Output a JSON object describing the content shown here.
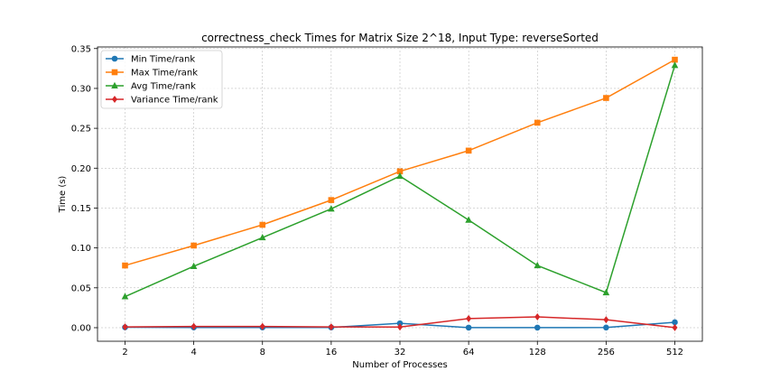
{
  "chart_data": {
    "type": "line",
    "title": "correctness_check Times for Matrix Size 2^18, Input Type: reverseSorted",
    "xlabel": "Number of Processes",
    "ylabel": "Time (s)",
    "categories": [
      "2",
      "4",
      "8",
      "16",
      "32",
      "64",
      "128",
      "256",
      "512"
    ],
    "ylim": [
      -0.017,
      0.352
    ],
    "yticks": [
      "0.00",
      "0.05",
      "0.10",
      "0.15",
      "0.20",
      "0.25",
      "0.30",
      "0.35"
    ],
    "ytick_values": [
      0,
      0.05,
      0.1,
      0.15,
      0.2,
      0.25,
      0.3,
      0.35
    ],
    "grid": true,
    "legend_position": "top-left",
    "series": [
      {
        "name": "Min Time/rank",
        "color": "#1f77b4",
        "marker": "circle",
        "values": [
          0.0005,
          0.0003,
          0.0003,
          0.0003,
          0.0055,
          0.0001,
          0.0001,
          0.0002,
          0.0068
        ]
      },
      {
        "name": "Max Time/rank",
        "color": "#ff7f0e",
        "marker": "square",
        "values": [
          0.078,
          0.103,
          0.129,
          0.16,
          0.196,
          0.222,
          0.257,
          0.288,
          0.336
        ]
      },
      {
        "name": "Avg Time/rank",
        "color": "#2ca02c",
        "marker": "triangle",
        "values": [
          0.039,
          0.077,
          0.113,
          0.149,
          0.19,
          0.135,
          0.078,
          0.044,
          0.329
        ]
      },
      {
        "name": "Variance Time/rank",
        "color": "#d62728",
        "marker": "diamond",
        "values": [
          0.001,
          0.0015,
          0.0015,
          0.001,
          0.0008,
          0.0115,
          0.0135,
          0.01,
          0.0001
        ]
      }
    ]
  }
}
